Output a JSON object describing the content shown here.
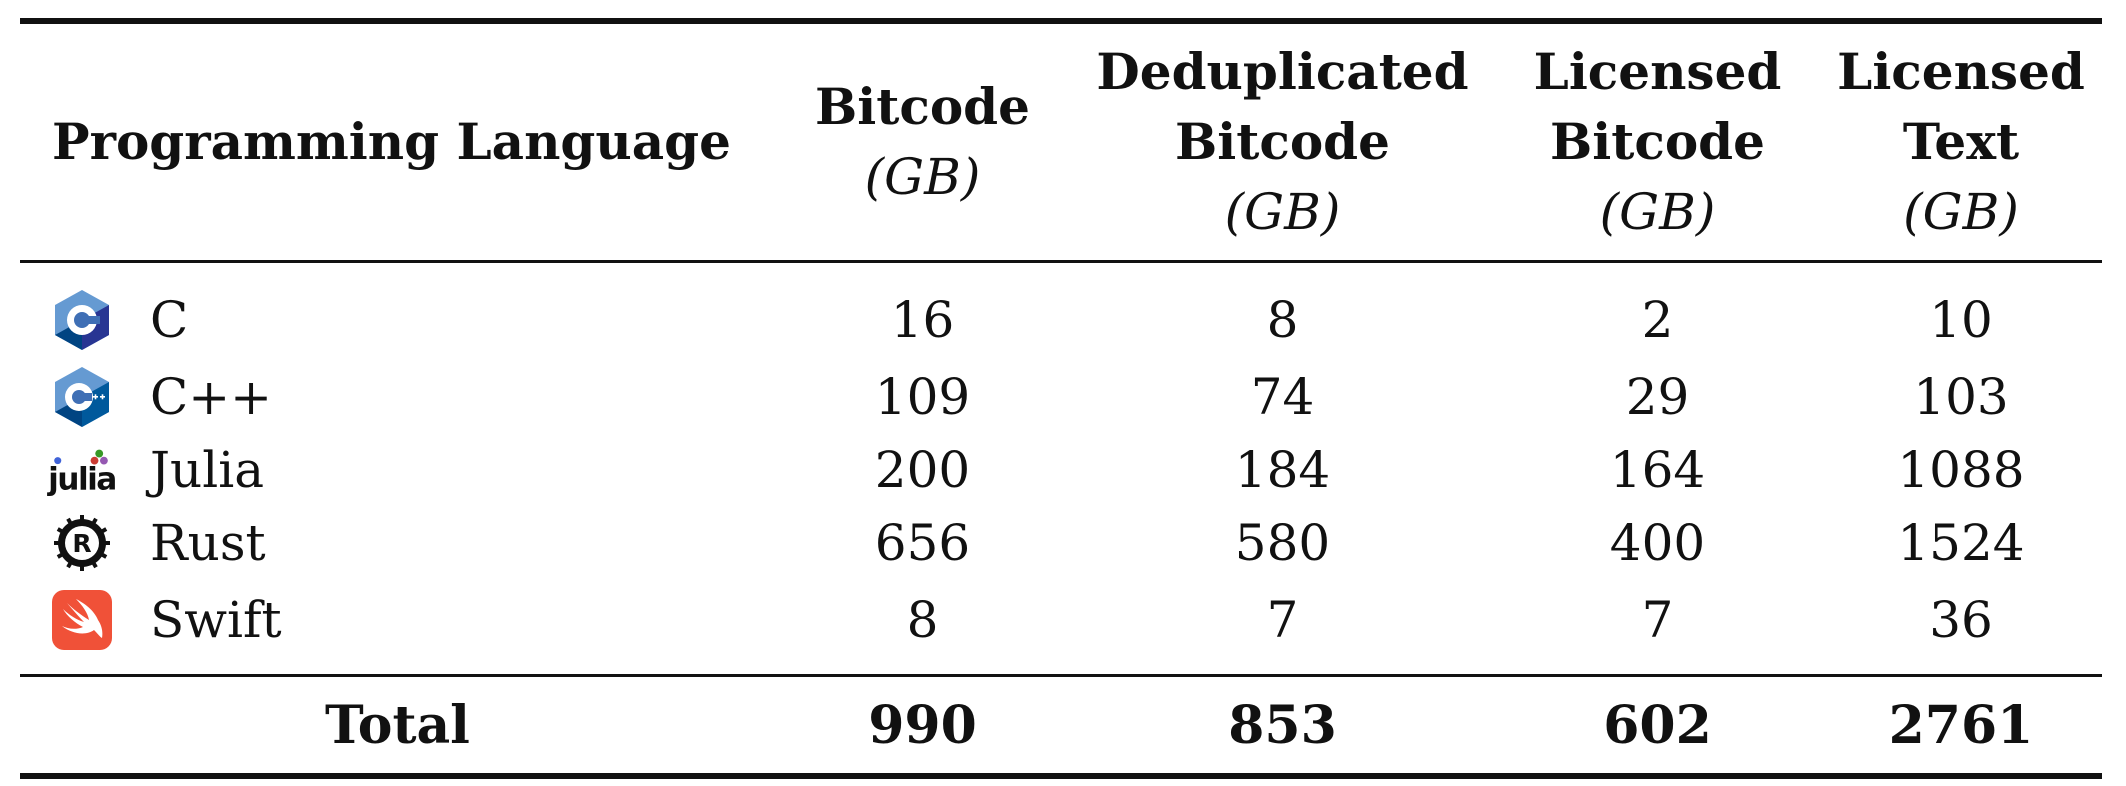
{
  "table": {
    "headers": {
      "language": "Programming Language",
      "bitcode": {
        "lines": [
          "Bitcode"
        ],
        "unit": "(GB)"
      },
      "dedup": {
        "lines": [
          "Deduplicated",
          "Bitcode"
        ],
        "unit": "(GB)"
      },
      "lic_bitcode": {
        "lines": [
          "Licensed",
          "Bitcode"
        ],
        "unit": "(GB)"
      },
      "lic_text": {
        "lines": [
          "Licensed",
          "Text"
        ],
        "unit": "(GB)"
      }
    },
    "rows": [
      {
        "language": "C",
        "icon": "c-language-icon",
        "bitcode": "16",
        "dedup": "8",
        "lic_bitcode": "2",
        "lic_text": "10"
      },
      {
        "language": "C++",
        "icon": "cpp-language-icon",
        "bitcode": "109",
        "dedup": "74",
        "lic_bitcode": "29",
        "lic_text": "103"
      },
      {
        "language": "Julia",
        "icon": "julia-logo-icon",
        "icon_text": "julia",
        "bitcode": "200",
        "dedup": "184",
        "lic_bitcode": "164",
        "lic_text": "1088"
      },
      {
        "language": "Rust",
        "icon": "rust-logo-icon",
        "icon_text": "R",
        "bitcode": "656",
        "dedup": "580",
        "lic_bitcode": "400",
        "lic_text": "1524"
      },
      {
        "language": "Swift",
        "icon": "swift-logo-icon",
        "bitcode": "8",
        "dedup": "7",
        "lic_bitcode": "7",
        "lic_text": "36"
      }
    ],
    "total": {
      "label": "Total",
      "bitcode": "990",
      "dedup": "853",
      "lic_bitcode": "602",
      "lic_text": "2761"
    }
  },
  "colors": {
    "rule": "#111111",
    "c_blue_light": "#659ad2",
    "c_blue_dark": "#283593",
    "julia_red": "#cb3c33",
    "julia_green": "#389826",
    "julia_purple": "#9558b2",
    "swift_orange": "#f05138"
  }
}
